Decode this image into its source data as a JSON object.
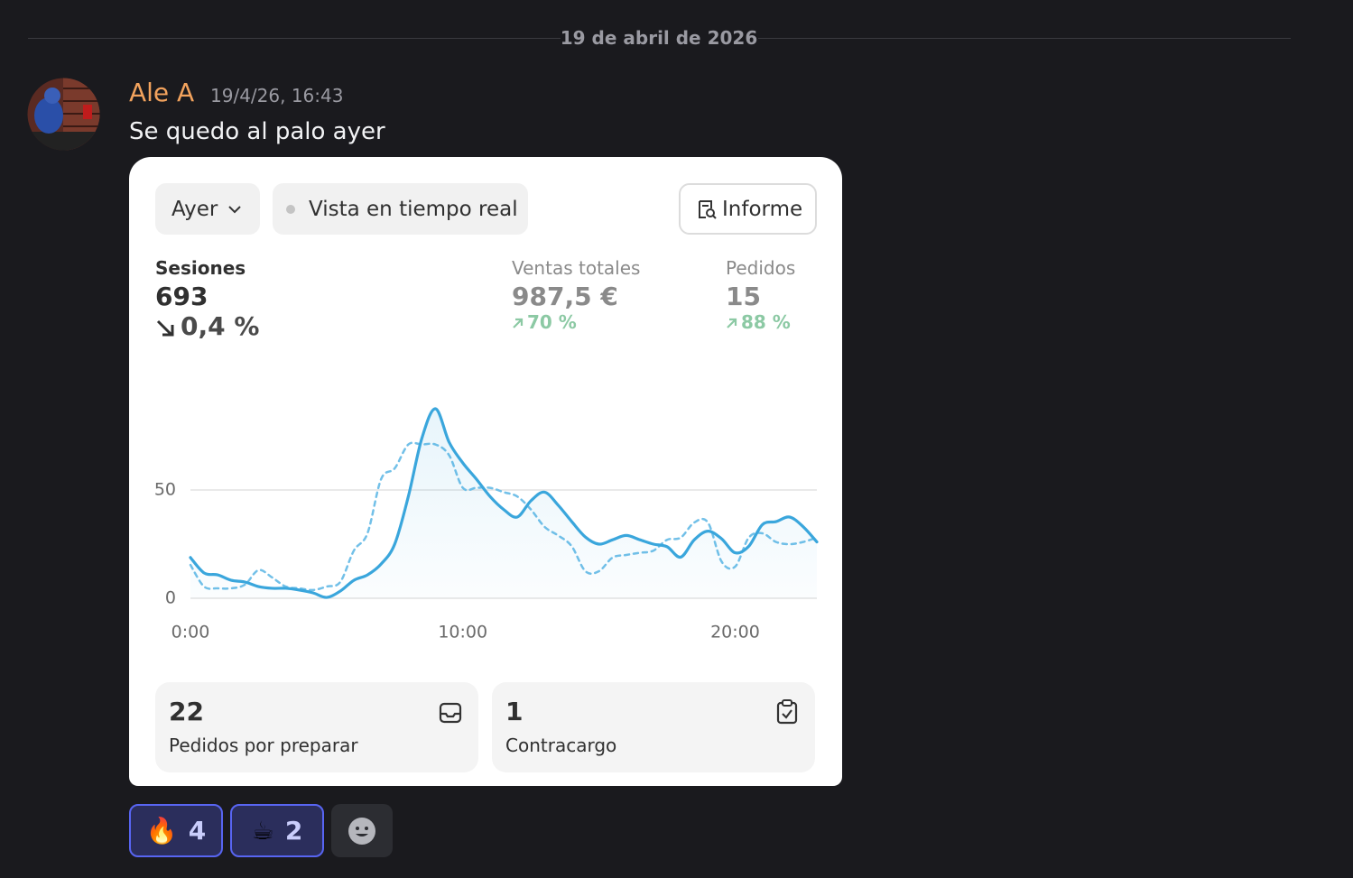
{
  "divider": {
    "date": "19 de abril de 2026"
  },
  "message": {
    "author": "Ale A",
    "timestamp": "19/4/26, 16:43",
    "text": "Se quedo al palo ayer"
  },
  "card": {
    "buttons": {
      "period": "Ayer",
      "realtime": "Vista en tiempo real",
      "report": "Informe"
    },
    "metrics": [
      {
        "label": "Sesiones",
        "value": "693",
        "change": "0,4 %"
      },
      {
        "label": "Ventas totales",
        "value": "987,5 €",
        "change": "70 %"
      },
      {
        "label": "Pedidos",
        "value": "15",
        "change": "88 %"
      }
    ],
    "tiles": [
      {
        "value": "22",
        "label": "Pedidos por preparar"
      },
      {
        "value": "1",
        "label": "Contracargo"
      }
    ]
  },
  "chart_data": {
    "type": "line",
    "x": [
      0,
      0.5,
      1,
      1.5,
      2,
      2.5,
      3,
      3.5,
      4,
      4.5,
      5,
      5.5,
      6,
      6.5,
      7,
      7.5,
      8,
      8.5,
      9,
      9.5,
      10,
      10.5,
      11,
      11.5,
      12,
      12.5,
      13,
      13.5,
      14,
      14.5,
      15,
      15.5,
      16,
      16.5,
      17,
      17.5,
      18,
      18.5,
      19,
      19.5,
      20,
      20.5,
      21,
      21.5,
      22,
      22.5,
      23
    ],
    "series": [
      {
        "color": "#3aa6dc",
        "dashed": false,
        "fill": true,
        "values": [
          18.8,
          11.7,
          10.8,
          8.3,
          7.5,
          5.4,
          4.6,
          4.6,
          3.8,
          2.5,
          0.4,
          3.3,
          8.3,
          10.8,
          15.8,
          25,
          47,
          74,
          87.5,
          72,
          62.5,
          55,
          47,
          41,
          37.5,
          45,
          49,
          43,
          35.4,
          28.3,
          25,
          27,
          29,
          27,
          25,
          23.8,
          19,
          27,
          31,
          27.5,
          21,
          24,
          34,
          35.4,
          37.5,
          33,
          26
        ]
      },
      {
        "color": "#72c0e8",
        "dashed": true,
        "fill": false,
        "values": [
          15.4,
          5.4,
          4.6,
          4.6,
          6.3,
          13,
          9.6,
          5.4,
          4.6,
          3.8,
          5.4,
          7.5,
          22,
          30,
          55,
          60,
          71,
          71,
          71,
          66,
          51,
          51,
          51,
          49,
          47,
          41,
          33,
          29,
          24,
          12.5,
          12.5,
          18.8,
          20,
          21,
          22,
          27,
          28,
          35,
          35,
          17,
          14.6,
          28,
          30,
          26,
          25,
          26,
          28
        ]
      }
    ],
    "xlim": [
      0,
      23
    ],
    "ylim": [
      0,
      95
    ],
    "xticks": [
      {
        "value": 0,
        "label": "0:00"
      },
      {
        "value": 10,
        "label": "10:00"
      },
      {
        "value": 20,
        "label": "20:00"
      }
    ],
    "yticks": [
      0,
      50
    ],
    "grid": true
  },
  "reactions": [
    {
      "emoji": "🔥",
      "count": 4
    },
    {
      "emoji": "☕",
      "count": 2
    }
  ]
}
